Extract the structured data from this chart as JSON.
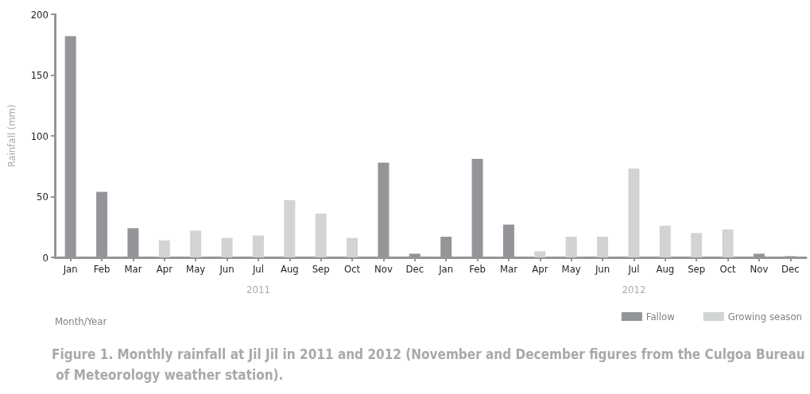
{
  "chart_data": {
    "type": "bar",
    "title": "Figure 1. Monthly rainfall at Jil Jil in 2011 and 2012 (November and December figures from the Culgoa Bureau of Meteorology weather station).",
    "xlabel": "Month/Year",
    "ylabel": "Rainfall (mm)",
    "categories": [
      "Jan",
      "Feb",
      "Mar",
      "Apr",
      "May",
      "Jun",
      "Jul",
      "Aug",
      "Sep",
      "Oct",
      "Nov",
      "Dec",
      "Jan",
      "Feb",
      "Mar",
      "Apr",
      "May",
      "Jun",
      "Jul",
      "Aug",
      "Sep",
      "Oct",
      "Nov",
      "Dec"
    ],
    "series": [
      {
        "name": "Fallow",
        "color": "#939598",
        "values": [
          182,
          54,
          24,
          null,
          null,
          null,
          null,
          null,
          null,
          null,
          78,
          3,
          17,
          81,
          27,
          null,
          null,
          null,
          null,
          null,
          null,
          null,
          3,
          1
        ]
      },
      {
        "name": "Growing season",
        "color": "#d1d3d4",
        "values": [
          null,
          null,
          null,
          14,
          22,
          16,
          18,
          47,
          36,
          16,
          null,
          null,
          null,
          null,
          null,
          5,
          17,
          17,
          73,
          26,
          20,
          23,
          null,
          null
        ]
      }
    ],
    "annotations": [
      "2011",
      "2012"
    ],
    "ylim": [
      0,
      200
    ],
    "yticks": [
      0,
      50,
      100,
      150,
      200
    ],
    "grid": false,
    "legend": "bottom right"
  }
}
